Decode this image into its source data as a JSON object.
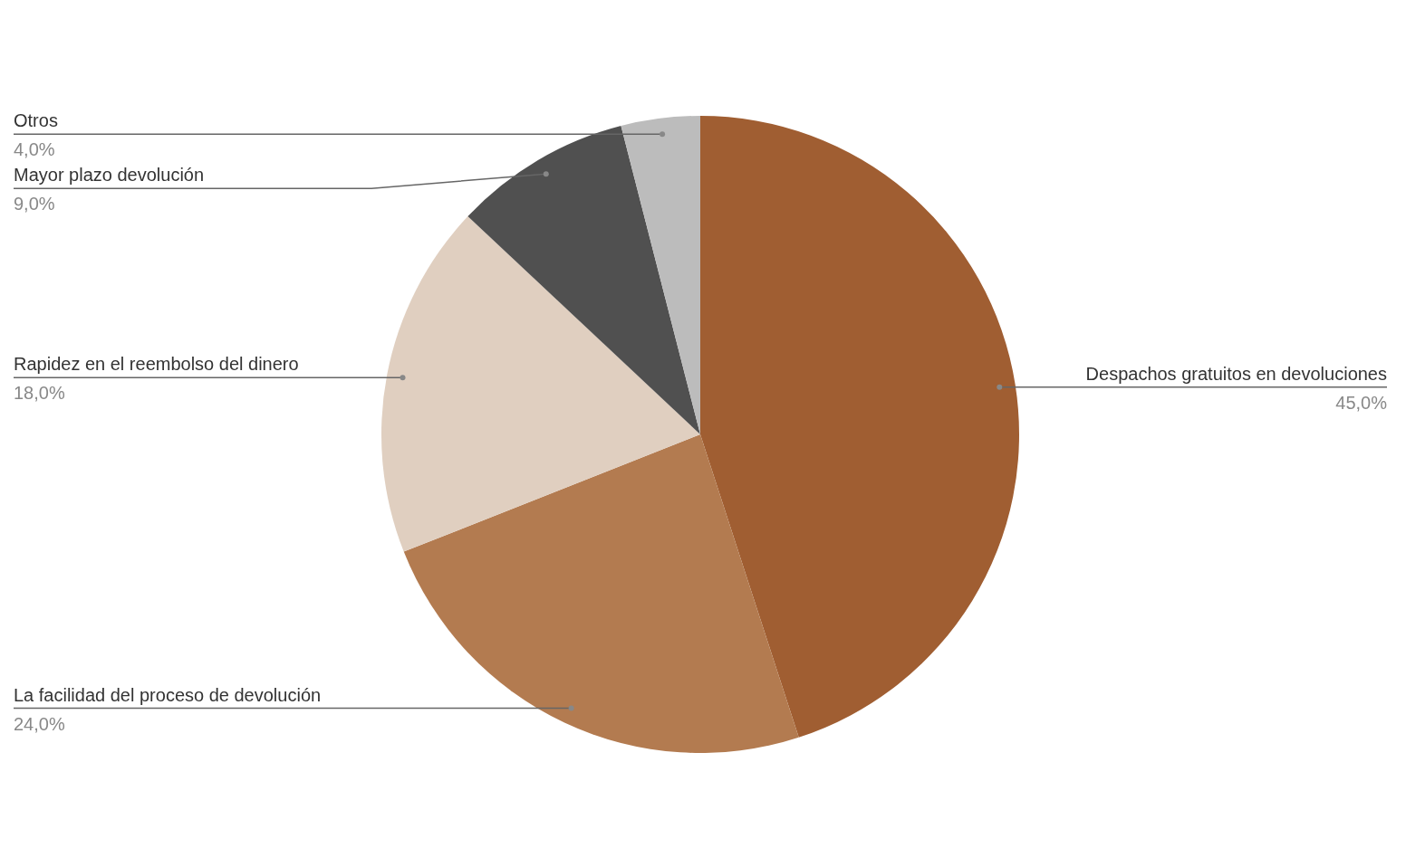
{
  "chart_data": {
    "type": "pie",
    "categories": [
      "Despachos gratuitos en devoluciones",
      "La facilidad del proceso de devolución",
      "Rapidez en el reembolso del dinero",
      "Mayor plazo devolución",
      "Otros"
    ],
    "values": [
      45,
      24,
      18,
      9,
      4
    ],
    "value_labels": [
      "45,0%",
      "24,0%",
      "18,0%",
      "9,0%",
      "4,0%"
    ],
    "colors": [
      "#a05e32",
      "#b37b50",
      "#e0cfc0",
      "#505050",
      "#bcbcbc"
    ]
  }
}
